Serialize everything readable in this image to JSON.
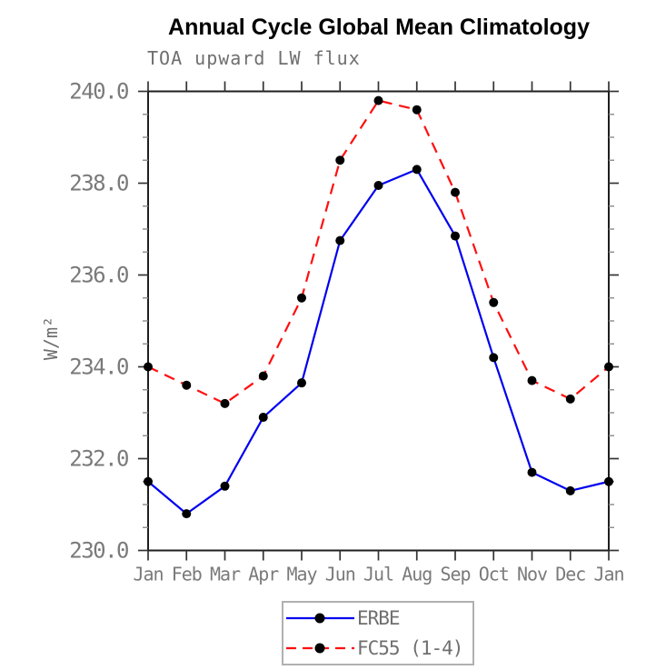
{
  "title": "Annual Cycle Global Mean Climatology",
  "subtitle": "TOA upward LW flux",
  "colors": {
    "axis": "#1f1f1f",
    "major_tick": "#333333",
    "minor_tick": "#8a8a8a",
    "tick_label": "#7a7a7a",
    "title_text": "#000000",
    "secondary_text": "#6f6f6f",
    "legend_border": "#b0b0b0",
    "background": "#ffffff"
  },
  "chart_data": {
    "type": "line",
    "title": "Annual Cycle Global Mean Climatology",
    "subtitle": "TOA upward LW flux",
    "xlabel": "",
    "ylabel": "W/m²",
    "ylim": [
      230.0,
      240.0
    ],
    "ytick_major_step": 2.0,
    "ytick_minor_step": 0.5,
    "ytick_labels": [
      "230.0",
      "232.0",
      "234.0",
      "236.0",
      "238.0",
      "240.0"
    ],
    "grid": false,
    "legend_position": "bottom-center",
    "categories": [
      "Jan",
      "Feb",
      "Mar",
      "Apr",
      "May",
      "Jun",
      "Jul",
      "Aug",
      "Sep",
      "Oct",
      "Nov",
      "Dec",
      "Jan"
    ],
    "series": [
      {
        "name": "ERBE",
        "color": "#0000f0",
        "style": "solid",
        "marker": "circle",
        "marker_color": "#000000",
        "values": [
          231.5,
          230.8,
          231.4,
          232.9,
          233.65,
          236.75,
          237.95,
          238.3,
          236.85,
          234.2,
          231.7,
          231.3,
          231.5
        ]
      },
      {
        "name": "FC55 (1-4)",
        "color": "#ff0f0f",
        "style": "dashed",
        "marker": "circle",
        "marker_color": "#000000",
        "values": [
          234.0,
          233.6,
          233.2,
          233.8,
          235.5,
          238.5,
          239.8,
          239.6,
          237.8,
          235.4,
          233.7,
          233.3,
          234.0
        ]
      }
    ]
  }
}
